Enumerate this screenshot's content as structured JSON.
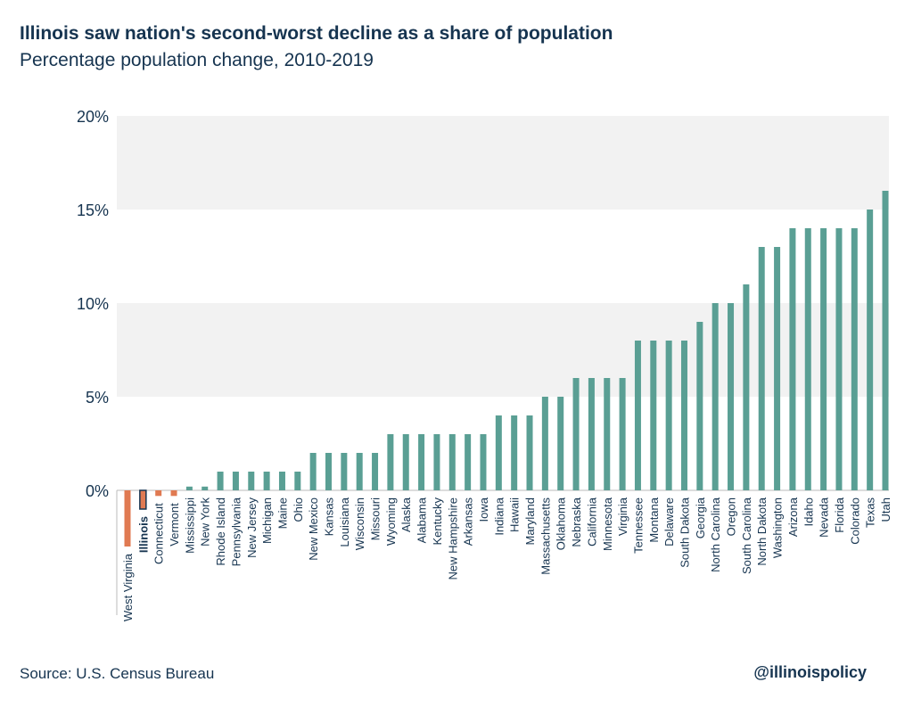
{
  "title": "Illinois saw nation's second-worst decline as a share of population",
  "subtitle": "Percentage population change, 2010-2019",
  "source": "Source: U.S. Census Bureau",
  "handle": "@illinoispolicy",
  "colors": {
    "positive": "#5a9f94",
    "negative": "#e07a52",
    "highlight_outline": "#163450",
    "band": "#f2f2f2",
    "text": "#163450"
  },
  "chart_data": {
    "type": "bar",
    "title": "Illinois saw nation's second-worst decline as a share of population",
    "subtitle": "Percentage population change, 2010-2019",
    "ylim": [
      -3,
      20
    ],
    "yticks": [
      0,
      5,
      10,
      15,
      20
    ],
    "ytick_labels": [
      "0%",
      "5%",
      "10%",
      "15%",
      "20%"
    ],
    "highlight": "Illinois",
    "categories": [
      "West Virginia",
      "Illinois",
      "Connecticut",
      "Vermont",
      "Mississippi",
      "New York",
      "Rhode Island",
      "Pennsylvania",
      "New Jersey",
      "Michigan",
      "Maine",
      "Ohio",
      "New Mexico",
      "Kansas",
      "Louisiana",
      "Wisconsin",
      "Missouri",
      "Wyoming",
      "Alaska",
      "Alabama",
      "Kentucky",
      "New Hampshire",
      "Arkansas",
      "Iowa",
      "Indiana",
      "Hawaii",
      "Maryland",
      "Massachusetts",
      "Oklahoma",
      "Nebraska",
      "California",
      "Minnesota",
      "Virginia",
      "Tennessee",
      "Montana",
      "Delaware",
      "South Dakota",
      "Georgia",
      "North Carolina",
      "Oregon",
      "South Carolina",
      "North Dakota",
      "Washington",
      "Arizona",
      "Idaho",
      "Nevada",
      "Florida",
      "Colorado",
      "Texas",
      "Utah"
    ],
    "values": [
      -3,
      -1,
      -0.3,
      -0.3,
      0.2,
      0.2,
      1,
      1,
      1,
      1,
      1,
      1,
      2,
      2,
      2,
      2,
      2,
      3,
      3,
      3,
      3,
      3,
      3,
      3,
      4,
      4,
      4,
      5,
      5,
      6,
      6,
      6,
      6,
      8,
      8,
      8,
      8,
      9,
      10,
      10,
      11,
      13,
      13,
      14,
      14,
      14,
      14,
      14,
      15,
      16
    ]
  }
}
